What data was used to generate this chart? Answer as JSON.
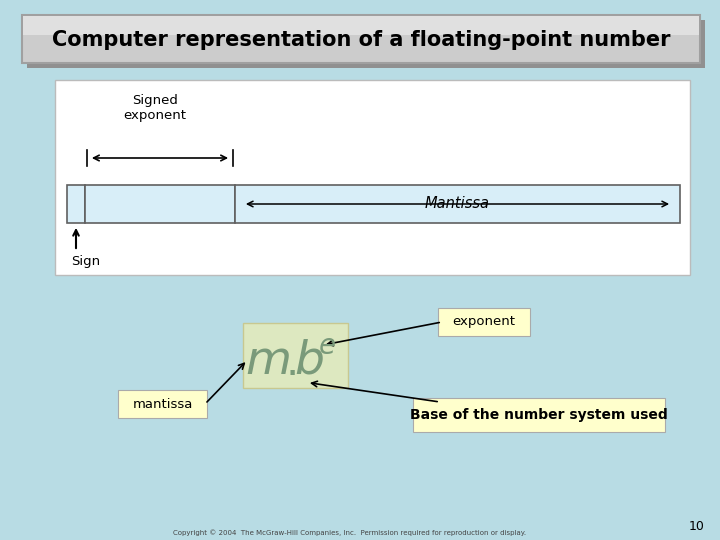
{
  "bg_color": "#b8dce4",
  "title": "Computer representation of a floating-point number",
  "title_bg_top": "#d8d8d8",
  "title_bg_bot": "#b0b0b0",
  "title_fg": "#000000",
  "diagram_bg": "#ffffff",
  "sign_label": "Sign",
  "signed_exp_label": "Signed\nexponent",
  "mantissa_label": "Mantissa",
  "exponent_box_label": "exponent",
  "mantissa_box_label": "mantissa",
  "base_box_label": "Base of the number system used",
  "formula_color": "#7a9a7a",
  "annotation_bg": "#ffffcc",
  "copyright": "Copyright © 2004  The McGraw-Hill Companies, Inc.  Permission required for reproduction or display.",
  "slide_number": "10",
  "cell_fill": "#d8eef8",
  "cell_edge": "#606060"
}
